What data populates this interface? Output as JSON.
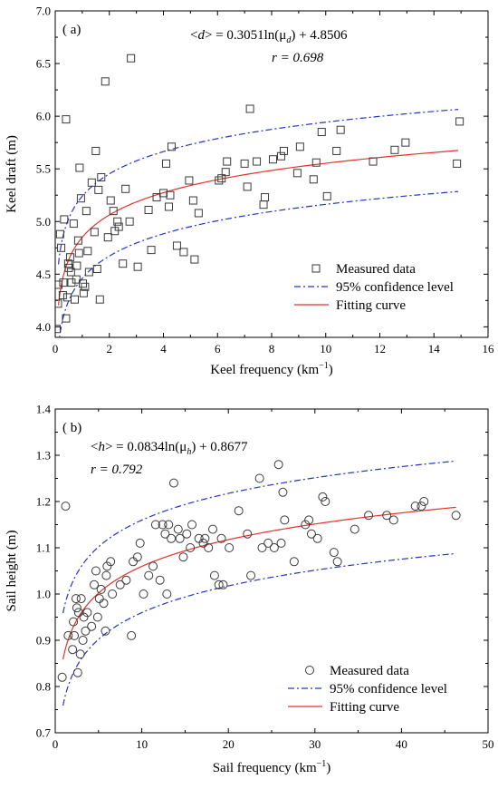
{
  "chart_data": [
    {
      "type": "scatter",
      "panel_label": "( a)",
      "equation": {
        "lhs_open": "<",
        "lhs_var": "d",
        "lhs_close": "> = 0.3051ln(μ",
        "sub": "d",
        "rhs": ") + 4.8506"
      },
      "r_text": "r = 0.698",
      "xlabel": "Keel frequency (km",
      "xlabel_sup": "−1",
      "xlabel_close": ")",
      "ylabel": "Keel draft (m)",
      "xlim": [
        0,
        16
      ],
      "ylim": [
        3.9,
        7.0
      ],
      "xticks": [
        "0",
        "2",
        "4",
        "6",
        "8",
        "10",
        "12",
        "14",
        "16"
      ],
      "yticks": [
        "4.0",
        "4.5",
        "5.0",
        "5.5",
        "6.0",
        "6.5",
        "7.0"
      ],
      "xtick_values": [
        0,
        2,
        4,
        6,
        8,
        10,
        12,
        14,
        16
      ],
      "ytick_values": [
        4.0,
        4.5,
        5.0,
        5.5,
        6.0,
        6.5,
        7.0
      ],
      "marker": "square",
      "fit": {
        "a": 0.3051,
        "b": 4.8506,
        "offset": 0.39,
        "x_from": 0.12,
        "x_to": 14.9
      },
      "legend": [
        "Measured data",
        "95% confidence level",
        "Fitting curve"
      ],
      "colors": {
        "fit": "#e8302a",
        "ci": "#2433cc",
        "marker": "#3a3a3a"
      },
      "points": [
        [
          0.05,
          3.98
        ],
        [
          0.1,
          4.22
        ],
        [
          0.12,
          4.4
        ],
        [
          0.18,
          4.88
        ],
        [
          0.22,
          4.75
        ],
        [
          0.28,
          4.3
        ],
        [
          0.3,
          4.42
        ],
        [
          0.33,
          5.02
        ],
        [
          0.4,
          5.97
        ],
        [
          0.4,
          4.08
        ],
        [
          0.45,
          4.28
        ],
        [
          0.48,
          4.6
        ],
        [
          0.5,
          4.56
        ],
        [
          0.55,
          4.66
        ],
        [
          0.58,
          4.52
        ],
        [
          0.6,
          4.42
        ],
        [
          0.68,
          4.98
        ],
        [
          0.72,
          4.26
        ],
        [
          0.78,
          4.45
        ],
        [
          0.8,
          4.58
        ],
        [
          0.85,
          4.82
        ],
        [
          0.88,
          4.7
        ],
        [
          0.9,
          5.51
        ],
        [
          0.95,
          5.22
        ],
        [
          1.02,
          4.41
        ],
        [
          1.05,
          4.32
        ],
        [
          1.1,
          4.38
        ],
        [
          1.15,
          5.1
        ],
        [
          1.2,
          4.72
        ],
        [
          1.25,
          4.52
        ],
        [
          1.35,
          5.37
        ],
        [
          1.45,
          4.9
        ],
        [
          1.5,
          5.67
        ],
        [
          1.55,
          4.55
        ],
        [
          1.6,
          5.3
        ],
        [
          1.65,
          4.26
        ],
        [
          1.7,
          5.42
        ],
        [
          1.85,
          6.33
        ],
        [
          1.95,
          4.85
        ],
        [
          2.05,
          5.2
        ],
        [
          2.15,
          5.1
        ],
        [
          2.2,
          4.91
        ],
        [
          2.3,
          5.0
        ],
        [
          2.35,
          4.95
        ],
        [
          2.5,
          4.6
        ],
        [
          2.6,
          5.31
        ],
        [
          2.75,
          5.0
        ],
        [
          2.8,
          6.55
        ],
        [
          3.05,
          4.57
        ],
        [
          3.45,
          5.11
        ],
        [
          3.55,
          4.73
        ],
        [
          3.75,
          5.23
        ],
        [
          4.0,
          5.27
        ],
        [
          4.1,
          5.55
        ],
        [
          4.2,
          5.14
        ],
        [
          4.25,
          5.25
        ],
        [
          4.3,
          5.71
        ],
        [
          4.5,
          4.77
        ],
        [
          4.75,
          4.71
        ],
        [
          4.95,
          5.39
        ],
        [
          5.1,
          5.2
        ],
        [
          5.15,
          4.64
        ],
        [
          5.3,
          5.08
        ],
        [
          6.05,
          5.39
        ],
        [
          6.15,
          5.41
        ],
        [
          6.3,
          5.47
        ],
        [
          6.35,
          5.57
        ],
        [
          7.0,
          5.55
        ],
        [
          7.1,
          5.33
        ],
        [
          7.2,
          6.07
        ],
        [
          7.45,
          5.57
        ],
        [
          7.7,
          5.16
        ],
        [
          7.75,
          5.23
        ],
        [
          8.05,
          5.59
        ],
        [
          8.35,
          5.62
        ],
        [
          8.45,
          5.67
        ],
        [
          8.95,
          5.46
        ],
        [
          9.05,
          5.71
        ],
        [
          9.55,
          5.4
        ],
        [
          9.65,
          5.56
        ],
        [
          9.85,
          5.85
        ],
        [
          10.05,
          5.24
        ],
        [
          10.4,
          5.67
        ],
        [
          10.55,
          5.87
        ],
        [
          11.75,
          5.57
        ],
        [
          12.55,
          5.68
        ],
        [
          12.95,
          5.75
        ],
        [
          14.85,
          5.55
        ],
        [
          14.95,
          5.95
        ]
      ]
    },
    {
      "type": "scatter",
      "panel_label": "( b)",
      "equation": {
        "lhs_open": "<",
        "lhs_var": "h",
        "lhs_close": "> = 0.0834ln(μ",
        "sub": "h",
        "rhs": ") + 0.8677"
      },
      "r_text": "r = 0.792",
      "xlabel": "Sail frequency (km",
      "xlabel_sup": "−1",
      "xlabel_close": ")",
      "ylabel": "Sail height (m)",
      "xlim": [
        0,
        50
      ],
      "ylim": [
        0.7,
        1.4
      ],
      "xticks": [
        "0",
        "10",
        "20",
        "30",
        "40",
        "50"
      ],
      "yticks": [
        "0.7",
        "0.8",
        "0.9",
        "1.0",
        "1.1",
        "1.2",
        "1.3",
        "1.4"
      ],
      "xtick_values": [
        0,
        10,
        20,
        30,
        40,
        50
      ],
      "ytick_values": [
        0.7,
        0.8,
        0.9,
        1.0,
        1.1,
        1.2,
        1.3,
        1.4
      ],
      "marker": "circle",
      "fit": {
        "a": 0.0834,
        "b": 0.8677,
        "offset": 0.1,
        "x_from": 0.9,
        "x_to": 46.3
      },
      "legend": [
        "Measured data",
        "95% confidence level",
        "Fitting curve"
      ],
      "colors": {
        "fit": "#e8302a",
        "ci": "#2433cc",
        "marker": "#3a3a3a"
      },
      "points": [
        [
          0.8,
          0.82
        ],
        [
          1.2,
          1.19
        ],
        [
          1.5,
          0.91
        ],
        [
          2.0,
          0.88
        ],
        [
          2.1,
          0.94
        ],
        [
          2.2,
          0.91
        ],
        [
          2.4,
          0.99
        ],
        [
          2.5,
          0.97
        ],
        [
          2.6,
          0.83
        ],
        [
          2.7,
          0.96
        ],
        [
          2.9,
          0.87
        ],
        [
          3.0,
          0.99
        ],
        [
          3.2,
          0.9
        ],
        [
          3.3,
          0.95
        ],
        [
          3.5,
          0.92
        ],
        [
          3.7,
          0.96
        ],
        [
          4.2,
          0.93
        ],
        [
          4.5,
          1.02
        ],
        [
          4.7,
          1.05
        ],
        [
          4.9,
          0.95
        ],
        [
          5.1,
          0.99
        ],
        [
          5.3,
          1.01
        ],
        [
          5.6,
          0.98
        ],
        [
          5.8,
          0.92
        ],
        [
          5.9,
          1.04
        ],
        [
          6.0,
          1.06
        ],
        [
          6.4,
          1.07
        ],
        [
          6.6,
          1.0
        ],
        [
          7.5,
          1.02
        ],
        [
          8.2,
          1.03
        ],
        [
          8.8,
          0.91
        ],
        [
          9.0,
          1.07
        ],
        [
          9.5,
          1.08
        ],
        [
          9.8,
          1.11
        ],
        [
          10.2,
          1.0
        ],
        [
          10.8,
          1.04
        ],
        [
          11.3,
          1.06
        ],
        [
          11.6,
          1.15
        ],
        [
          12.1,
          1.03
        ],
        [
          12.4,
          1.15
        ],
        [
          12.7,
          1.13
        ],
        [
          12.9,
          1.0
        ],
        [
          13.1,
          1.15
        ],
        [
          13.4,
          1.12
        ],
        [
          13.7,
          1.24
        ],
        [
          14.2,
          1.14
        ],
        [
          14.4,
          1.12
        ],
        [
          14.8,
          1.08
        ],
        [
          15.2,
          1.13
        ],
        [
          15.6,
          1.1
        ],
        [
          15.8,
          1.15
        ],
        [
          16.6,
          1.12
        ],
        [
          17.1,
          1.11
        ],
        [
          17.3,
          1.12
        ],
        [
          17.7,
          1.1
        ],
        [
          18.2,
          1.14
        ],
        [
          18.4,
          1.04
        ],
        [
          18.9,
          1.02
        ],
        [
          19.2,
          1.12
        ],
        [
          19.4,
          1.02
        ],
        [
          20.1,
          1.1
        ],
        [
          21.2,
          1.18
        ],
        [
          22.2,
          1.13
        ],
        [
          22.6,
          1.04
        ],
        [
          23.6,
          1.25
        ],
        [
          23.9,
          1.1
        ],
        [
          24.6,
          1.11
        ],
        [
          25.3,
          1.1
        ],
        [
          25.8,
          1.28
        ],
        [
          26.1,
          1.11
        ],
        [
          26.3,
          1.22
        ],
        [
          26.5,
          1.16
        ],
        [
          27.6,
          1.07
        ],
        [
          28.9,
          1.15
        ],
        [
          29.3,
          1.16
        ],
        [
          29.6,
          1.13
        ],
        [
          30.3,
          1.12
        ],
        [
          30.9,
          1.21
        ],
        [
          31.2,
          1.2
        ],
        [
          32.2,
          1.09
        ],
        [
          32.6,
          1.07
        ],
        [
          34.6,
          1.14
        ],
        [
          36.2,
          1.17
        ],
        [
          38.3,
          1.17
        ],
        [
          39.1,
          1.16
        ],
        [
          41.6,
          1.19
        ],
        [
          42.3,
          1.19
        ],
        [
          42.6,
          1.2
        ],
        [
          46.3,
          1.17
        ]
      ]
    }
  ]
}
